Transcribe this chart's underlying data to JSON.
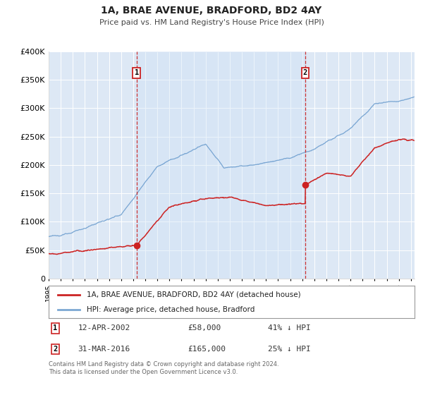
{
  "title": "1A, BRAE AVENUE, BRADFORD, BD2 4AY",
  "subtitle": "Price paid vs. HM Land Registry's House Price Index (HPI)",
  "bg_color": "#ffffff",
  "plot_bg_color": "#dde8f5",
  "shade_between_color": "#cdddf0",
  "grid_color": "#ffffff",
  "hpi_color": "#6699cc",
  "price_color": "#cc2222",
  "ylim": [
    0,
    400000
  ],
  "yticks": [
    0,
    50000,
    100000,
    150000,
    200000,
    250000,
    300000,
    350000,
    400000
  ],
  "ytick_labels": [
    "0",
    "£50K",
    "£100K",
    "£150K",
    "£200K",
    "£250K",
    "£300K",
    "£350K",
    "£400K"
  ],
  "xlim_start": 1995.0,
  "xlim_end": 2025.3,
  "marker1_x": 2002.28,
  "marker1_y": 58000,
  "marker2_x": 2016.25,
  "marker2_y": 165000,
  "marker1_date": "12-APR-2002",
  "marker1_price": "£58,000",
  "marker1_note": "41% ↓ HPI",
  "marker2_date": "31-MAR-2016",
  "marker2_price": "£165,000",
  "marker2_note": "25% ↓ HPI",
  "legend_line1": "1A, BRAE AVENUE, BRADFORD, BD2 4AY (detached house)",
  "legend_line2": "HPI: Average price, detached house, Bradford",
  "footnote": "Contains HM Land Registry data © Crown copyright and database right 2024.\nThis data is licensed under the Open Government Licence v3.0."
}
